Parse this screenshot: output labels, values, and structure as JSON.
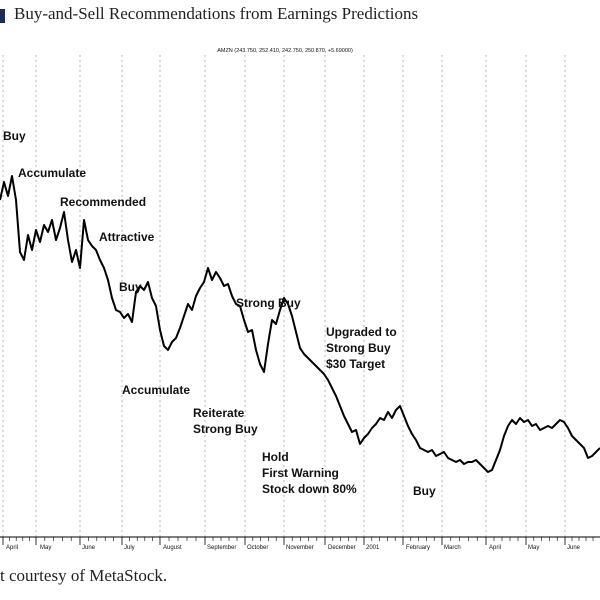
{
  "page": {
    "title": "Buy-and-Sell Recommendations from Earnings Predictions",
    "caption": "t courtesy of MetaStock."
  },
  "chart_data": {
    "type": "line",
    "ticker_header": "AMZN (243.750, 252.410, 242.750, 250.870, +5.69000)",
    "x_labels": [
      "April",
      "May",
      "June",
      "July",
      "August",
      "September",
      "October",
      "November",
      "December",
      "2001",
      "February",
      "March",
      "April",
      "May",
      "June"
    ],
    "grid": "vertical dotted lines at month boundaries",
    "series": [
      {
        "values": [
          [
            0,
            190
          ],
          [
            4,
            208
          ],
          [
            8,
            194
          ],
          [
            12,
            214
          ],
          [
            16,
            190
          ],
          [
            20,
            138
          ],
          [
            24,
            130
          ],
          [
            28,
            155
          ],
          [
            32,
            140
          ],
          [
            36,
            160
          ],
          [
            40,
            148
          ],
          [
            44,
            165
          ],
          [
            48,
            158
          ],
          [
            52,
            170
          ],
          [
            56,
            150
          ],
          [
            60,
            162
          ],
          [
            64,
            178
          ],
          [
            68,
            150
          ],
          [
            72,
            128
          ],
          [
            76,
            140
          ],
          [
            80,
            122
          ],
          [
            84,
            170
          ],
          [
            88,
            150
          ],
          [
            92,
            144
          ],
          [
            96,
            140
          ],
          [
            100,
            130
          ],
          [
            104,
            122
          ],
          [
            108,
            110
          ],
          [
            112,
            92
          ],
          [
            116,
            80
          ],
          [
            120,
            78
          ],
          [
            124,
            72
          ],
          [
            128,
            76
          ],
          [
            132,
            68
          ],
          [
            136,
            98
          ],
          [
            140,
            104
          ],
          [
            144,
            100
          ],
          [
            148,
            108
          ],
          [
            152,
            92
          ],
          [
            156,
            84
          ],
          [
            160,
            60
          ],
          [
            164,
            44
          ],
          [
            168,
            40
          ],
          [
            172,
            48
          ],
          [
            176,
            52
          ],
          [
            180,
            62
          ],
          [
            184,
            74
          ],
          [
            188,
            86
          ],
          [
            192,
            80
          ],
          [
            196,
            94
          ],
          [
            200,
            102
          ],
          [
            204,
            108
          ],
          [
            208,
            122
          ],
          [
            212,
            110
          ],
          [
            216,
            118
          ],
          [
            220,
            112
          ],
          [
            224,
            104
          ],
          [
            228,
            106
          ],
          [
            232,
            94
          ],
          [
            236,
            86
          ],
          [
            240,
            84
          ],
          [
            244,
            70
          ],
          [
            248,
            58
          ],
          [
            252,
            60
          ],
          [
            256,
            40
          ],
          [
            260,
            26
          ],
          [
            264,
            18
          ],
          [
            268,
            46
          ],
          [
            272,
            70
          ],
          [
            276,
            66
          ],
          [
            280,
            80
          ],
          [
            284,
            92
          ],
          [
            288,
            86
          ],
          [
            292,
            74
          ],
          [
            296,
            58
          ],
          [
            300,
            42
          ],
          [
            304,
            36
          ],
          [
            308,
            32
          ],
          [
            312,
            28
          ],
          [
            316,
            24
          ],
          [
            320,
            20
          ],
          [
            324,
            16
          ],
          [
            328,
            10
          ],
          [
            332,
            2
          ],
          [
            336,
            -6
          ],
          [
            340,
            -16
          ],
          [
            344,
            -26
          ],
          [
            348,
            -34
          ],
          [
            352,
            -42
          ],
          [
            356,
            -40
          ],
          [
            360,
            -54
          ],
          [
            364,
            -48
          ],
          [
            368,
            -44
          ],
          [
            372,
            -38
          ],
          [
            376,
            -34
          ],
          [
            380,
            -28
          ],
          [
            384,
            -30
          ],
          [
            388,
            -22
          ],
          [
            392,
            -28
          ],
          [
            396,
            -20
          ],
          [
            400,
            -16
          ],
          [
            404,
            -26
          ],
          [
            408,
            -36
          ],
          [
            412,
            -44
          ],
          [
            416,
            -50
          ],
          [
            420,
            -58
          ],
          [
            424,
            -60
          ],
          [
            428,
            -62
          ],
          [
            432,
            -60
          ],
          [
            436,
            -66
          ],
          [
            440,
            -64
          ],
          [
            444,
            -62
          ],
          [
            448,
            -68
          ],
          [
            452,
            -70
          ],
          [
            456,
            -72
          ],
          [
            460,
            -70
          ],
          [
            464,
            -74
          ],
          [
            468,
            -72
          ],
          [
            472,
            -72
          ],
          [
            476,
            -70
          ],
          [
            480,
            -74
          ],
          [
            484,
            -78
          ],
          [
            488,
            -82
          ],
          [
            492,
            -80
          ],
          [
            496,
            -70
          ],
          [
            500,
            -60
          ],
          [
            504,
            -46
          ],
          [
            508,
            -36
          ],
          [
            512,
            -30
          ],
          [
            516,
            -34
          ],
          [
            520,
            -28
          ],
          [
            524,
            -32
          ],
          [
            528,
            -30
          ],
          [
            532,
            -36
          ],
          [
            536,
            -34
          ],
          [
            540,
            -40
          ],
          [
            544,
            -38
          ],
          [
            548,
            -36
          ],
          [
            552,
            -38
          ],
          [
            556,
            -34
          ],
          [
            560,
            -30
          ],
          [
            564,
            -32
          ],
          [
            568,
            -38
          ],
          [
            572,
            -46
          ],
          [
            576,
            -50
          ],
          [
            580,
            -54
          ],
          [
            584,
            -58
          ],
          [
            588,
            -68
          ],
          [
            592,
            -66
          ],
          [
            596,
            -62
          ],
          [
            600,
            -58
          ]
        ]
      }
    ],
    "annotations": [
      {
        "lines": [
          "Buy"
        ]
      },
      {
        "lines": [
          "Accumulate"
        ]
      },
      {
        "lines": [
          "Recommended"
        ]
      },
      {
        "lines": [
          "Attractive"
        ]
      },
      {
        "lines": [
          "Buy"
        ]
      },
      {
        "lines": [
          "Strong Buy"
        ]
      },
      {
        "lines": [
          "Upgraded to",
          "Strong Buy",
          "$30 Target"
        ]
      },
      {
        "lines": [
          "Accumulate"
        ]
      },
      {
        "lines": [
          "Reiterate",
          "Strong Buy"
        ]
      },
      {
        "lines": [
          "Hold",
          "First Warning",
          "Stock down 80%"
        ]
      },
      {
        "lines": [
          "Buy"
        ]
      }
    ]
  }
}
